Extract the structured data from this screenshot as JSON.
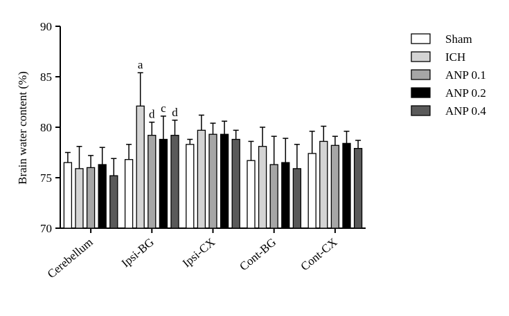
{
  "chart_data": {
    "type": "bar",
    "title": "",
    "xlabel": "",
    "ylabel": "Brain water content (%)",
    "ylim": [
      70,
      90
    ],
    "yticks": [
      70,
      75,
      80,
      85,
      90
    ],
    "grid": false,
    "legend_position": "right",
    "categories": [
      "Cerebellum",
      "Ipsi-BG",
      "Ipsi-CX",
      "Cont-BG",
      "Cont-CX"
    ],
    "series": [
      {
        "name": "Sham",
        "color": "#ffffff",
        "values": [
          76.5,
          76.8,
          78.3,
          76.7,
          77.4
        ],
        "errors": [
          1.0,
          1.5,
          0.5,
          1.9,
          2.2
        ]
      },
      {
        "name": "ICH",
        "color": "#d4d4d4",
        "values": [
          75.9,
          82.1,
          79.7,
          78.1,
          78.6
        ],
        "errors": [
          2.2,
          3.3,
          1.5,
          1.9,
          1.5
        ]
      },
      {
        "name": "ANP 0.1",
        "color": "#a6a6a6",
        "values": [
          76.0,
          79.2,
          79.3,
          76.3,
          78.2
        ],
        "errors": [
          1.2,
          1.3,
          1.1,
          2.8,
          0.9
        ]
      },
      {
        "name": "ANP 0.2",
        "color": "#000000",
        "values": [
          76.3,
          78.8,
          79.3,
          76.5,
          78.4
        ],
        "errors": [
          1.7,
          2.3,
          1.3,
          2.4,
          1.2
        ]
      },
      {
        "name": "ANP 0.4",
        "color": "#5a5a5a",
        "values": [
          75.2,
          79.2,
          78.8,
          75.9,
          77.9
        ],
        "errors": [
          1.7,
          1.5,
          0.9,
          2.4,
          0.8
        ]
      }
    ],
    "annotations": [
      {
        "category": "Ipsi-BG",
        "series": "ICH",
        "text": "a"
      },
      {
        "category": "Ipsi-BG",
        "series": "ANP 0.1",
        "text": "d"
      },
      {
        "category": "Ipsi-BG",
        "series": "ANP 0.2",
        "text": "c"
      },
      {
        "category": "Ipsi-BG",
        "series": "ANP 0.4",
        "text": "d"
      }
    ]
  }
}
